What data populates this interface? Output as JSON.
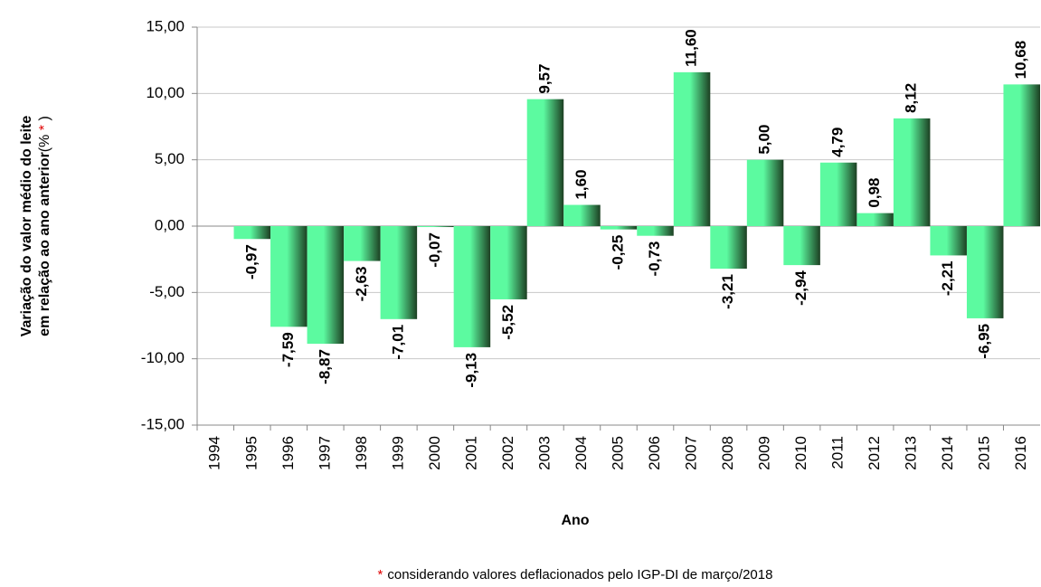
{
  "chart_data": {
    "type": "bar",
    "ylabel": [
      "Variação  do valor médio do leite",
      "em relação ao ano anterior"
    ],
    "ylabel_unit": [
      "(% ",
      "*",
      " )"
    ],
    "xlabel": "Ano",
    "footnote": {
      "marker": "*",
      "text": "considerando valores  deflacionados  pelo IGP-DI  de março/2018"
    },
    "categories": [
      "1994",
      "1995",
      "1996",
      "1997",
      "1998",
      "1999",
      "2000",
      "2001",
      "2002",
      "2003",
      "2004",
      "2005",
      "2006",
      "2007",
      "2008",
      "2009",
      "2010",
      "2011",
      "2012",
      "2013",
      "2014",
      "2015",
      "2016"
    ],
    "values": [
      null,
      -0.97,
      -7.59,
      -8.87,
      -2.63,
      -7.01,
      -0.07,
      -9.13,
      -5.52,
      9.57,
      1.6,
      -0.25,
      -0.73,
      11.6,
      -3.21,
      5.0,
      -2.94,
      4.79,
      0.98,
      8.12,
      -2.21,
      -6.95,
      10.68
    ],
    "value_labels": [
      null,
      "-0,97",
      "-7,59",
      "-8,87",
      "-2,63",
      "-7,01",
      "-0,07",
      "-9,13",
      "-5,52",
      "9,57",
      "1,60",
      "-0,25",
      "-0,73",
      "11,60",
      "-3,21",
      "5,00",
      "-2,94",
      "4,79",
      "0,98",
      "8,12",
      "-2,21",
      "-6,95",
      "10,68"
    ],
    "color": "#5cfaa0",
    "marker_color": "#e00000",
    "ylim": [
      -15,
      15
    ],
    "yticks": [
      {
        "value": -15,
        "label": "-15,00"
      },
      {
        "value": -10,
        "label": "-10,00"
      },
      {
        "value": -5,
        "label": "-5,00"
      },
      {
        "value": 0,
        "label": "0,00"
      },
      {
        "value": 5,
        "label": "5,00"
      },
      {
        "value": 10,
        "label": "10,00"
      },
      {
        "value": 15,
        "label": "15,00"
      }
    ],
    "grid": true
  }
}
